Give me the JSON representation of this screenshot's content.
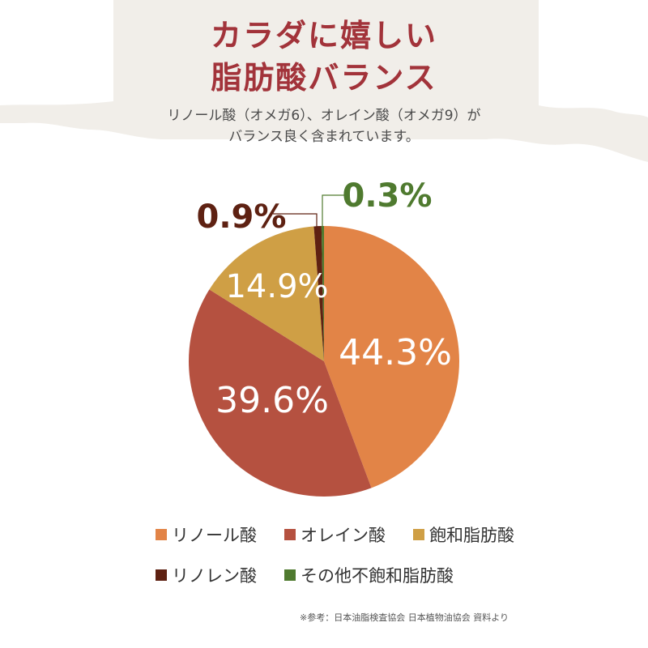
{
  "header": {
    "title_line1": "カラダに嬉しい",
    "title_line2": "脂肪酸バランス",
    "subtitle_line1": "リノール酸（オメガ6）、オレイン酸（オメガ9）が",
    "subtitle_line2": "バランス良く含まれています。"
  },
  "chart_data": {
    "type": "pie",
    "title": "",
    "unit": "%",
    "slices": [
      {
        "name": "リノール酸",
        "value": 44.3,
        "label": "44.3%",
        "color": "#e28447"
      },
      {
        "name": "オレイン酸",
        "value": 39.6,
        "label": "39.6%",
        "color": "#b55140"
      },
      {
        "name": "飽和脂肪酸",
        "value": 14.9,
        "label": "14.9%",
        "color": "#cf9f45"
      },
      {
        "name": "リノレン酸",
        "value": 0.9,
        "label": "0.9%",
        "color": "#5e2112"
      },
      {
        "name": "その他不飽和脂肪酸",
        "value": 0.3,
        "label": "0.3%",
        "color": "#4f7a2f"
      }
    ]
  },
  "legend": {
    "row1": [
      "リノール酸",
      "オレイン酸",
      "飽和脂肪酸"
    ],
    "row2": [
      "リノレン酸",
      "その他不飽和脂肪酸"
    ],
    "colors_row1": [
      "#e28447",
      "#b55140",
      "#cf9f45"
    ],
    "colors_row2": [
      "#5e2112",
      "#4f7a2f"
    ]
  },
  "source": "※参考：日本油脂検査協会 日本植物油協会 資料より",
  "colors": {
    "title": "#a2333a",
    "header_bg": "#f1eee9"
  }
}
